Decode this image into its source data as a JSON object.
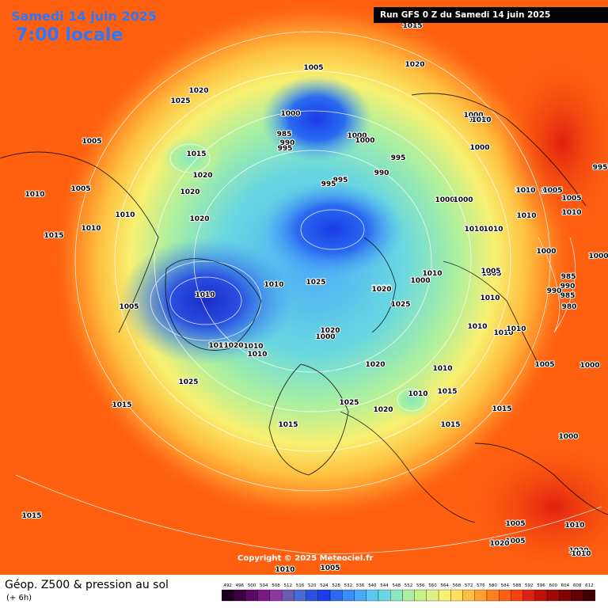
{
  "header": {
    "date_title": "Samedi 14 juin 2025",
    "time_title": "7:00 locale",
    "run_info": "Run GFS 0 Z du Samedi 14 juin 2025",
    "copyright": "Copyright © 2025 Meteociel.fr"
  },
  "footer": {
    "title": "Géop. Z500 & pression au sol",
    "subtitle": "(+ 6h)"
  },
  "colorscale": {
    "ticks": [
      "492",
      "496",
      "500",
      "504",
      "508",
      "512",
      "516",
      "520",
      "524",
      "528",
      "532",
      "536",
      "540",
      "544",
      "548",
      "552",
      "556",
      "560",
      "564",
      "568",
      "572",
      "576",
      "580",
      "584",
      "588",
      "592",
      "596",
      "600",
      "604",
      "608",
      "612"
    ],
    "colors": [
      "#1a0020",
      "#3a0040",
      "#5a0a60",
      "#7a1a80",
      "#8a3aa0",
      "#6a5ab0",
      "#4a6ad0",
      "#2a50e0",
      "#1a3ce8",
      "#2a6af0",
      "#3a8af8",
      "#4aaaf8",
      "#5ac8f0",
      "#6ad8e0",
      "#8ae8c0",
      "#aaf0a0",
      "#c8f088",
      "#e0f080",
      "#f8f070",
      "#ffe060",
      "#ffc040",
      "#ffa030",
      "#ff8020",
      "#ff6010",
      "#f84010",
      "#e02010",
      "#c01008",
      "#a00808",
      "#800404",
      "#600202",
      "#400000"
    ]
  },
  "pressure_labels": [
    {
      "t": "1015"
    },
    {
      "t": "1020"
    },
    {
      "t": "1005"
    },
    {
      "t": "1025"
    },
    {
      "t": "1020"
    },
    {
      "t": "1000"
    },
    {
      "t": "985"
    },
    {
      "t": "990"
    },
    {
      "t": "995"
    },
    {
      "t": "1000"
    },
    {
      "t": "1000"
    },
    {
      "t": "995"
    },
    {
      "t": "990"
    },
    {
      "t": "995"
    },
    {
      "t": "995"
    },
    {
      "t": "1000"
    },
    {
      "t": "1000"
    },
    {
      "t": "1010"
    },
    {
      "t": "1000"
    },
    {
      "t": "1015"
    },
    {
      "t": "1020"
    },
    {
      "t": "1020"
    },
    {
      "t": "1005"
    },
    {
      "t": "1010"
    },
    {
      "t": "1010"
    },
    {
      "t": "1010"
    },
    {
      "t": "1020"
    },
    {
      "t": "1000"
    },
    {
      "t": "1000"
    },
    {
      "t": "1010"
    },
    {
      "t": "1010"
    },
    {
      "t": "1000"
    },
    {
      "t": "1005"
    },
    {
      "t": "1005"
    },
    {
      "t": "1010"
    },
    {
      "t": "995"
    },
    {
      "t": "1000"
    },
    {
      "t": "990"
    },
    {
      "t": "985"
    },
    {
      "t": "990"
    },
    {
      "t": "985"
    },
    {
      "t": "980"
    },
    {
      "t": "1005"
    },
    {
      "t": "1010"
    },
    {
      "t": "1010"
    },
    {
      "t": "1010"
    },
    {
      "t": "1010"
    },
    {
      "t": "1005"
    },
    {
      "t": "1000"
    },
    {
      "t": "1000"
    },
    {
      "t": "1005"
    },
    {
      "t": "1010"
    },
    {
      "t": "1005"
    },
    {
      "t": "1020"
    },
    {
      "t": "1020"
    },
    {
      "t": "1010"
    },
    {
      "t": "1010"
    },
    {
      "t": "1015"
    },
    {
      "t": "1025"
    },
    {
      "t": "1005"
    },
    {
      "t": "1010"
    },
    {
      "t": "1000"
    },
    {
      "t": "1010"
    },
    {
      "t": "1015"
    },
    {
      "t": "1020"
    },
    {
      "t": "1010"
    },
    {
      "t": "1010"
    },
    {
      "t": "1010"
    },
    {
      "t": "1025"
    },
    {
      "t": "1020"
    },
    {
      "t": "1000"
    },
    {
      "t": "1020"
    },
    {
      "t": "1025"
    },
    {
      "t": "1015"
    },
    {
      "t": "1025"
    },
    {
      "t": "1020"
    },
    {
      "t": "1015"
    },
    {
      "t": "1015"
    },
    {
      "t": "1015"
    },
    {
      "t": "1010"
    },
    {
      "t": "1005"
    },
    {
      "t": "1000"
    },
    {
      "t": "1005"
    },
    {
      "t": "1010"
    },
    {
      "t": "1015"
    },
    {
      "t": "1015"
    },
    {
      "t": "1010"
    },
    {
      "t": "1010"
    },
    {
      "t": "1000"
    },
    {
      "t": "1005"
    },
    {
      "t": "1010"
    },
    {
      "t": "1005"
    },
    {
      "t": "1020"
    },
    {
      "t": "995"
    }
  ]
}
